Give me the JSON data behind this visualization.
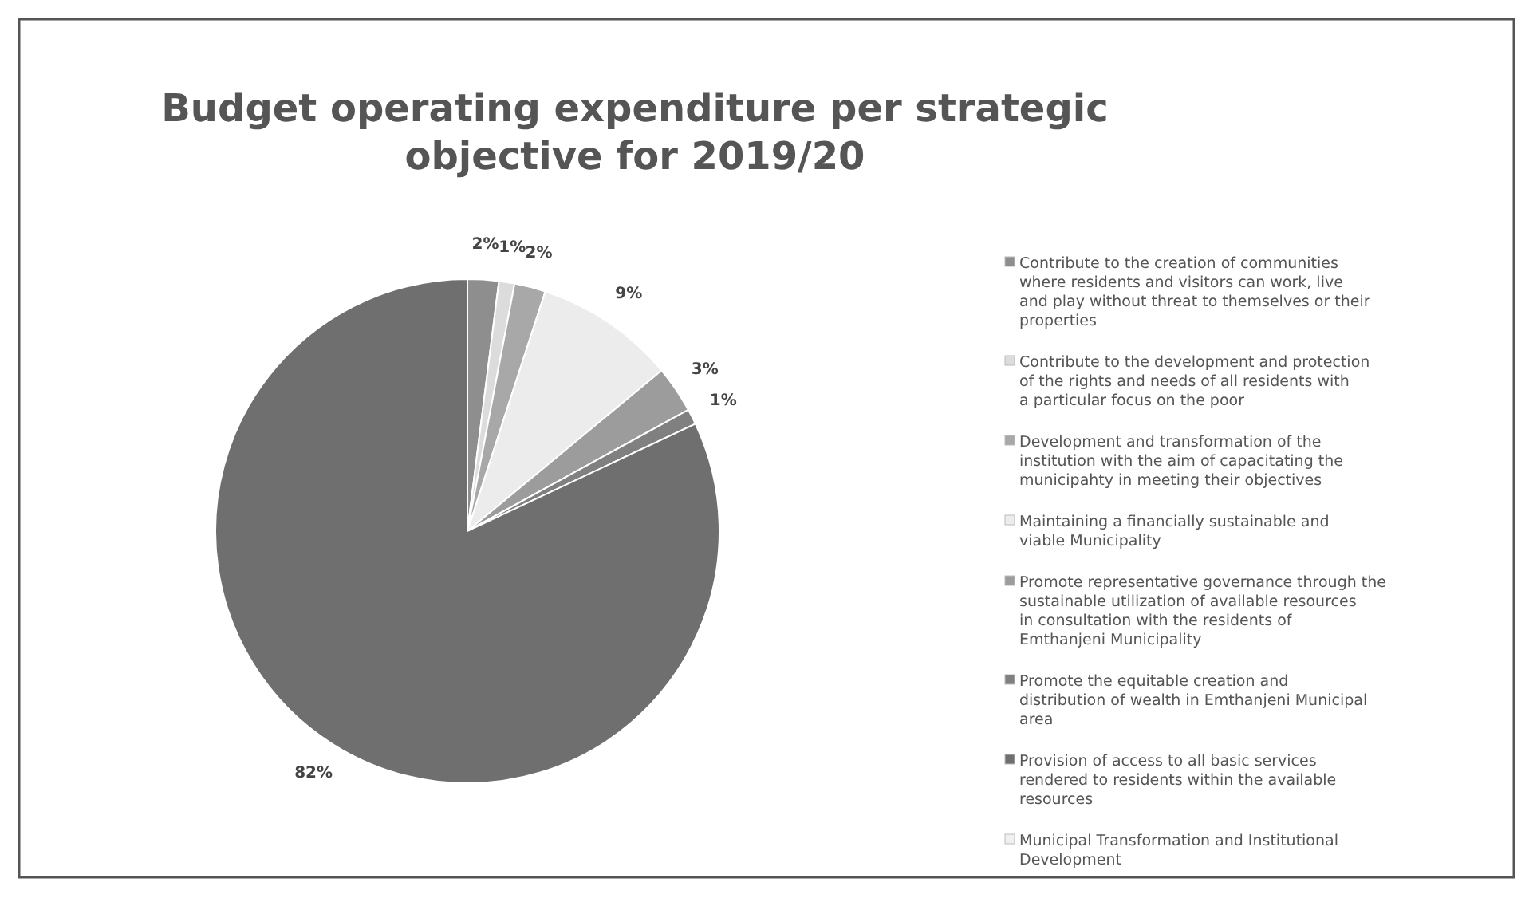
{
  "chart_data": {
    "type": "pie",
    "title": "Budget operating expenditure per strategic objective  for 2019/20",
    "categories": [
      "Contribute to the creation of communities where residents and visitors can work, live and play without threat to themselves or their properties",
      "Contribute to the development and protection of the rights and needs of all residents with a particular focus on the poor",
      "Development and transformation of the institution with the aim of capacitating the municipahty in meeting their objectives",
      "Maintaining a financially sustainable and viable Municipality",
      "Promote representative governance through the sustainable utilization of available resources in consultation with the residents of Emthanjeni Municipality",
      "Promote the equitable creation and distribution of wealth in Emthanjeni Municipal area",
      "Provision of access to all basic services rendered to residents within the available resources",
      "Municipal Transformation and Institutional Development"
    ],
    "values": [
      2,
      1,
      2,
      9,
      3,
      1,
      82,
      null
    ],
    "colors": [
      "#8e8e8e",
      "#dcdcdc",
      "#a8a8a8",
      "#ececec",
      "#9c9c9c",
      "#808080",
      "#6f6f6f",
      "#f0f0f0"
    ],
    "value_labels": [
      "2%",
      "1%",
      "2%",
      "9%",
      "3%",
      "1%",
      "82%",
      null
    ],
    "legend": "right"
  }
}
